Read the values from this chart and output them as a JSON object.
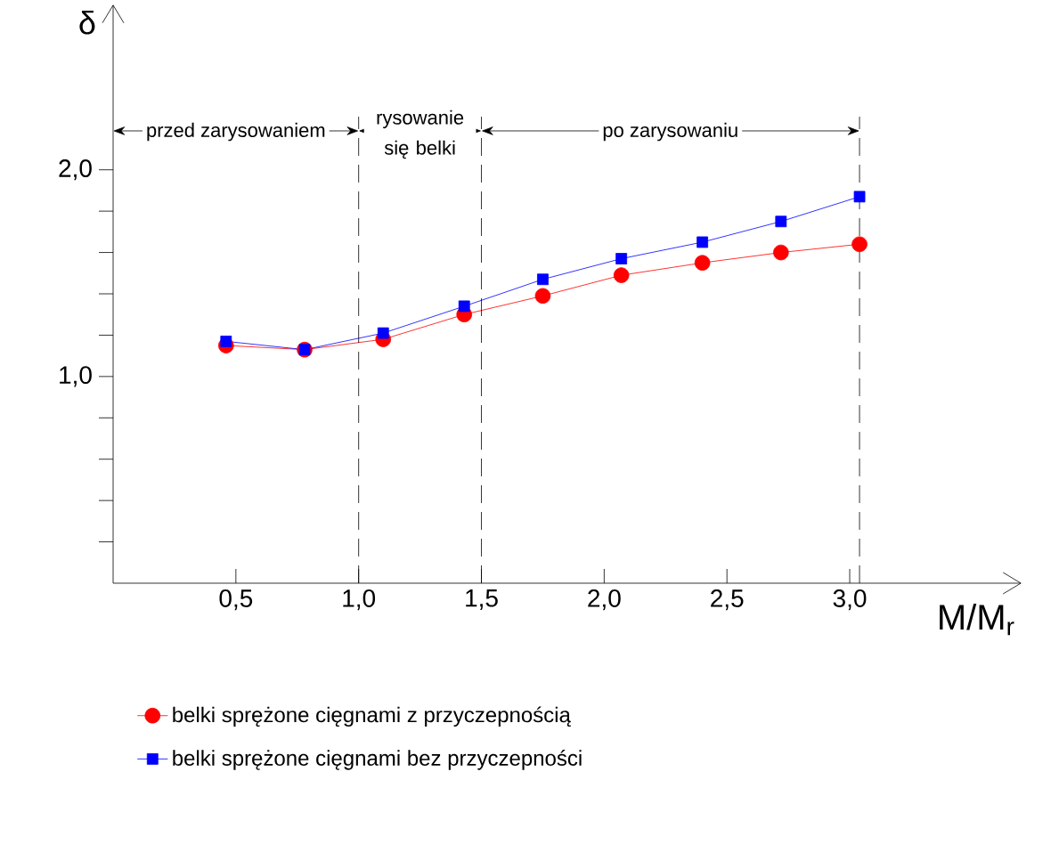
{
  "chart_data": {
    "type": "line",
    "xlabel": "M/M$_{r}$",
    "ylabel": "δ",
    "x": [
      0.46,
      0.78,
      1.1,
      1.43,
      1.75,
      2.07,
      2.4,
      2.72,
      3.04
    ],
    "series": [
      {
        "name": "belki sprężone cięgnami z przyczepnością",
        "color": "#ff0000",
        "marker": "circle",
        "values": [
          1.15,
          1.13,
          1.18,
          1.3,
          1.39,
          1.49,
          1.55,
          1.6,
          1.64
        ]
      },
      {
        "name": "belki sprężone cięgnami bez przyczepności",
        "color": "#0000ff",
        "marker": "square",
        "values": [
          1.17,
          1.13,
          1.21,
          1.34,
          1.47,
          1.57,
          1.65,
          1.75,
          1.87
        ]
      }
    ],
    "xlim": [
      0,
      3.7
    ],
    "ylim": [
      0,
      2.8
    ],
    "xticks": [
      {
        "value": 0.5,
        "label": "0,5"
      },
      {
        "value": 1.0,
        "label": "1,0"
      },
      {
        "value": 1.5,
        "label": "1,5"
      },
      {
        "value": 2.0,
        "label": "2,0"
      },
      {
        "value": 2.5,
        "label": "2,5"
      },
      {
        "value": 3.0,
        "label": "3,0"
      }
    ],
    "yticks": [
      {
        "value": 0.2,
        "label": null
      },
      {
        "value": 0.4,
        "label": null
      },
      {
        "value": 0.6,
        "label": null
      },
      {
        "value": 0.8,
        "label": null
      },
      {
        "value": 1.0,
        "label": "1,0"
      },
      {
        "value": 1.2,
        "label": null
      },
      {
        "value": 1.4,
        "label": null
      },
      {
        "value": 1.6,
        "label": null
      },
      {
        "value": 1.8,
        "label": null
      },
      {
        "value": 2.0,
        "label": "2,0"
      }
    ],
    "ref_lines": [
      {
        "axis": "x",
        "value": 1.0,
        "line_style": "dashed"
      },
      {
        "axis": "x",
        "value": 1.5,
        "line_style": "dashed"
      },
      {
        "axis": "x",
        "value": 3.04,
        "line_style": "dashed"
      }
    ],
    "annotations": [
      "przed zarysowaniem",
      "rysowanie się belki",
      "po zarysowaniu"
    ],
    "grid": false,
    "legend": "bottom"
  }
}
